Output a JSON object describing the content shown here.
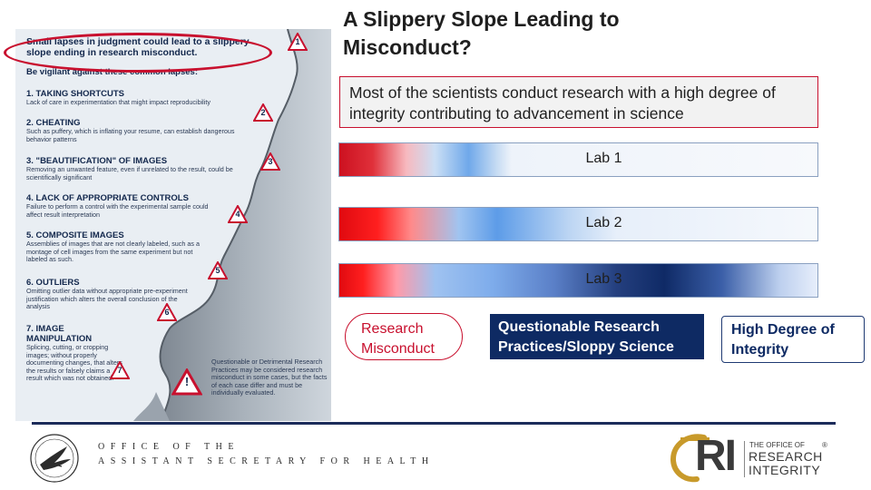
{
  "infographic": {
    "heading": "Small lapses in judgment could lead to a slippery slope ending in research misconduct.",
    "subheading": "Be vigilant against these common lapses:",
    "items": [
      {
        "number": "1",
        "title": "1. TAKING SHORTCUTS",
        "desc": "Lack of care in experimentation that might impact reproducibility"
      },
      {
        "number": "2",
        "title": "2. CHEATING",
        "desc": "Such as puffery, which is inflating your resume, can establish dangerous behavior patterns"
      },
      {
        "number": "3",
        "title": "3. \"BEAUTIFICATION\" OF IMAGES",
        "desc": "Removing an unwanted feature, even if unrelated to the result, could be scientifically significant"
      },
      {
        "number": "4",
        "title": "4. LACK OF APPROPRIATE CONTROLS",
        "desc": "Failure to perform a control with the experimental sample could affect result interpretation"
      },
      {
        "number": "5",
        "title": "5. COMPOSITE IMAGES",
        "desc": "Assemblies of images that are not clearly labeled, such as a montage of cell images from the same experiment but not labeled as such."
      },
      {
        "number": "6",
        "title": "6. OUTLIERS",
        "desc": "Omitting outlier data without appropriate pre-experiment justification which alters the overall conclusion of the analysis"
      },
      {
        "number": "7",
        "title": "7. IMAGE MANIPULATION",
        "desc": "Splicing, cutting, or cropping images; without properly documenting changes, that alters the results or falsely claims a result which was not obtained."
      }
    ],
    "warning_symbol": "!",
    "note": "Questionable or Detrimental Research Practices may be considered research misconduct in some cases, but the facts of each case differ and must be individually evaluated."
  },
  "slide": {
    "title": "A Slippery Slope Leading to Misconduct?",
    "integrity_statement": "Most of the scientists conduct research with a high degree of integrity contributing to advancement in science"
  },
  "labs": [
    {
      "label": "Lab 1"
    },
    {
      "label": "Lab 2"
    },
    {
      "label": "Lab 3"
    }
  ],
  "legend": {
    "misconduct": "Research Misconduct",
    "qrp": "Questionable Research Practices/Sloppy Science",
    "high_integrity": "High Degree of Integrity"
  },
  "footer": {
    "oash_line1": "OFFICE OF THE",
    "oash_line2": "ASSISTANT SECRETARY FOR HEALTH",
    "ori_name_1": "THE OFFICE OF",
    "ori_name_2": "RESEARCH",
    "ori_name_3": "INTEGRITY",
    "ori_mark": "RI",
    "registered": "®"
  },
  "colors": {
    "misconduct_red": "#c8102e",
    "navy": "#0e2a63",
    "accent_gold": "#c89a2b"
  }
}
